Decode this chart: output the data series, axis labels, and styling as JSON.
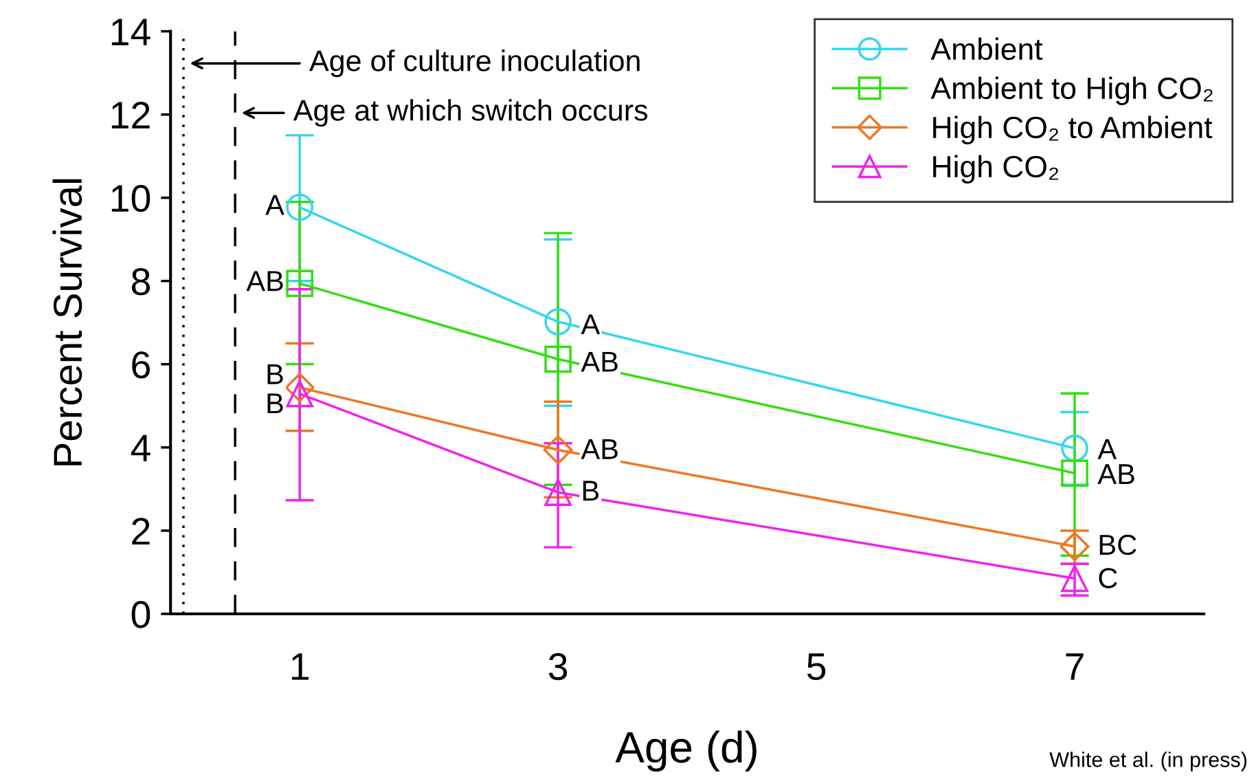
{
  "chart_data": {
    "type": "line",
    "xlabel": "Age (d)",
    "ylabel": "Percent Survival",
    "x": [
      1,
      3,
      7
    ],
    "xlim": [
      0,
      8
    ],
    "xticks": [
      1,
      3,
      5,
      7
    ],
    "ylim": [
      0,
      14
    ],
    "yticks": [
      0,
      2,
      4,
      6,
      8,
      10,
      12,
      14
    ],
    "grid": false,
    "legend": "top right",
    "line_style": "solid",
    "series": [
      {
        "name": "Ambient",
        "color": "#33d6ee",
        "marker": "circle",
        "values": [
          9.77,
          7.02,
          3.98
        ],
        "errors": [
          [
            8.0,
            11.5
          ],
          [
            5.0,
            9.0
          ],
          [
            3.1,
            4.85
          ]
        ]
      },
      {
        "name": "Ambient to High CO₂",
        "color": "#33dd11",
        "marker": "square",
        "values": [
          7.94,
          6.12,
          3.38
        ],
        "errors": [
          [
            6.0,
            9.9
          ],
          [
            3.1,
            9.15
          ],
          [
            1.4,
            5.3
          ]
        ]
      },
      {
        "name": "High CO₂ to Ambient",
        "color": "#ee7722",
        "marker": "diamond",
        "values": [
          5.44,
          3.94,
          1.62
        ],
        "errors": [
          [
            4.4,
            6.5
          ],
          [
            2.8,
            5.1
          ],
          [
            1.2,
            2.0
          ]
        ]
      },
      {
        "name": "High CO₂",
        "color": "#ee22ee",
        "marker": "triangle",
        "values": [
          5.29,
          2.92,
          0.85
        ],
        "errors": [
          [
            2.73,
            7.8
          ],
          [
            1.6,
            4.1
          ],
          [
            0.44,
            1.2
          ]
        ]
      }
    ],
    "ref_lines": [
      {
        "axis": "x",
        "value": 0.1,
        "line_style": "dotted",
        "color": "#000000"
      },
      {
        "axis": "x",
        "value": 0.5,
        "label": "Age at which switch occurs",
        "line_style": "dashed",
        "color": "#000000"
      }
    ],
    "annotations": [
      "Age of culture inoculation",
      {
        "text": "A",
        "x": 1,
        "y": 9.77
      },
      {
        "text": "AB",
        "x": 1,
        "y": 7.94
      },
      {
        "text": "B",
        "x": 1,
        "y": 5.7
      },
      {
        "text": "B",
        "x": 1,
        "y": 5.0
      },
      {
        "text": "A",
        "x": 3,
        "y": 6.9
      },
      {
        "text": "AB",
        "x": 3,
        "y": 6.0
      },
      {
        "text": "AB",
        "x": 3,
        "y": 3.9
      },
      {
        "text": "B",
        "x": 3,
        "y": 2.9
      },
      {
        "text": "A",
        "x": 7,
        "y": 3.9
      },
      {
        "text": "AB",
        "x": 7,
        "y": 3.3
      },
      {
        "text": "BC",
        "x": 7,
        "y": 1.6
      },
      {
        "text": "C",
        "x": 7,
        "y": 0.8
      },
      "White et al. (in press)"
    ]
  }
}
